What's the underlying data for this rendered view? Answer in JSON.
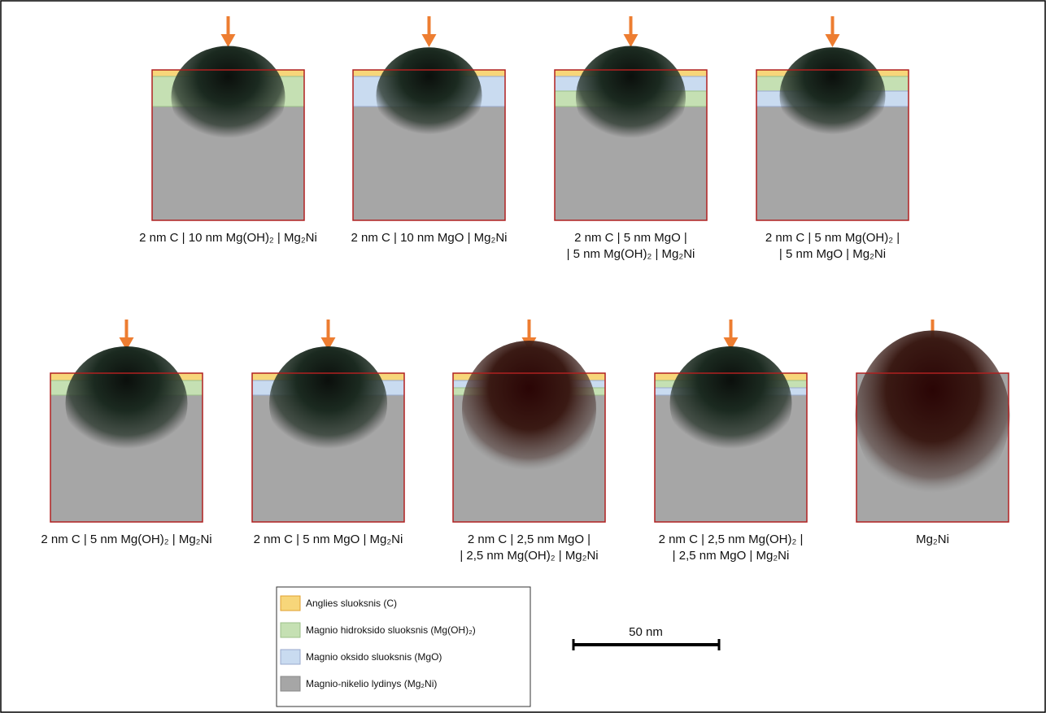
{
  "panels": [
    {
      "label": [
        "2 nm C | 10 nm Mg(OH)₂ | Mg₂Ni"
      ]
    },
    {
      "label": [
        "2 nm C | 10 nm MgO | Mg₂Ni"
      ]
    },
    {
      "label": [
        "2 nm C | 5 nm MgO |",
        "| 5 nm Mg(OH)₂ | Mg₂Ni"
      ]
    },
    {
      "label": [
        "2 nm C | 5 nm Mg(OH)₂ |",
        "| 5 nm MgO | Mg₂Ni"
      ]
    },
    {
      "label": [
        "2 nm C | 5 nm Mg(OH)₂ | Mg₂Ni"
      ]
    },
    {
      "label": [
        "2 nm C | 5 nm MgO | Mg₂Ni"
      ]
    },
    {
      "label": [
        "2 nm C | 2,5 nm MgO |",
        "| 2,5 nm Mg(OH)₂ | Mg₂Ni"
      ]
    },
    {
      "label": [
        "2 nm C | 2,5 nm Mg(OH)₂ |",
        "| 2,5 nm MgO | Mg₂Ni"
      ]
    },
    {
      "label": [
        "Mg₂Ni"
      ]
    }
  ],
  "legend": [
    "Anglies sluoksnis (C)",
    "Magnio hidroksido sluoksnis (Mg(OH)₂)",
    "Magnio oksido sluoksnis (MgO)",
    "Magnio-nikelio lydinys (Mg₂Ni)"
  ],
  "scale_bar": {
    "label": "50 nm"
  }
}
